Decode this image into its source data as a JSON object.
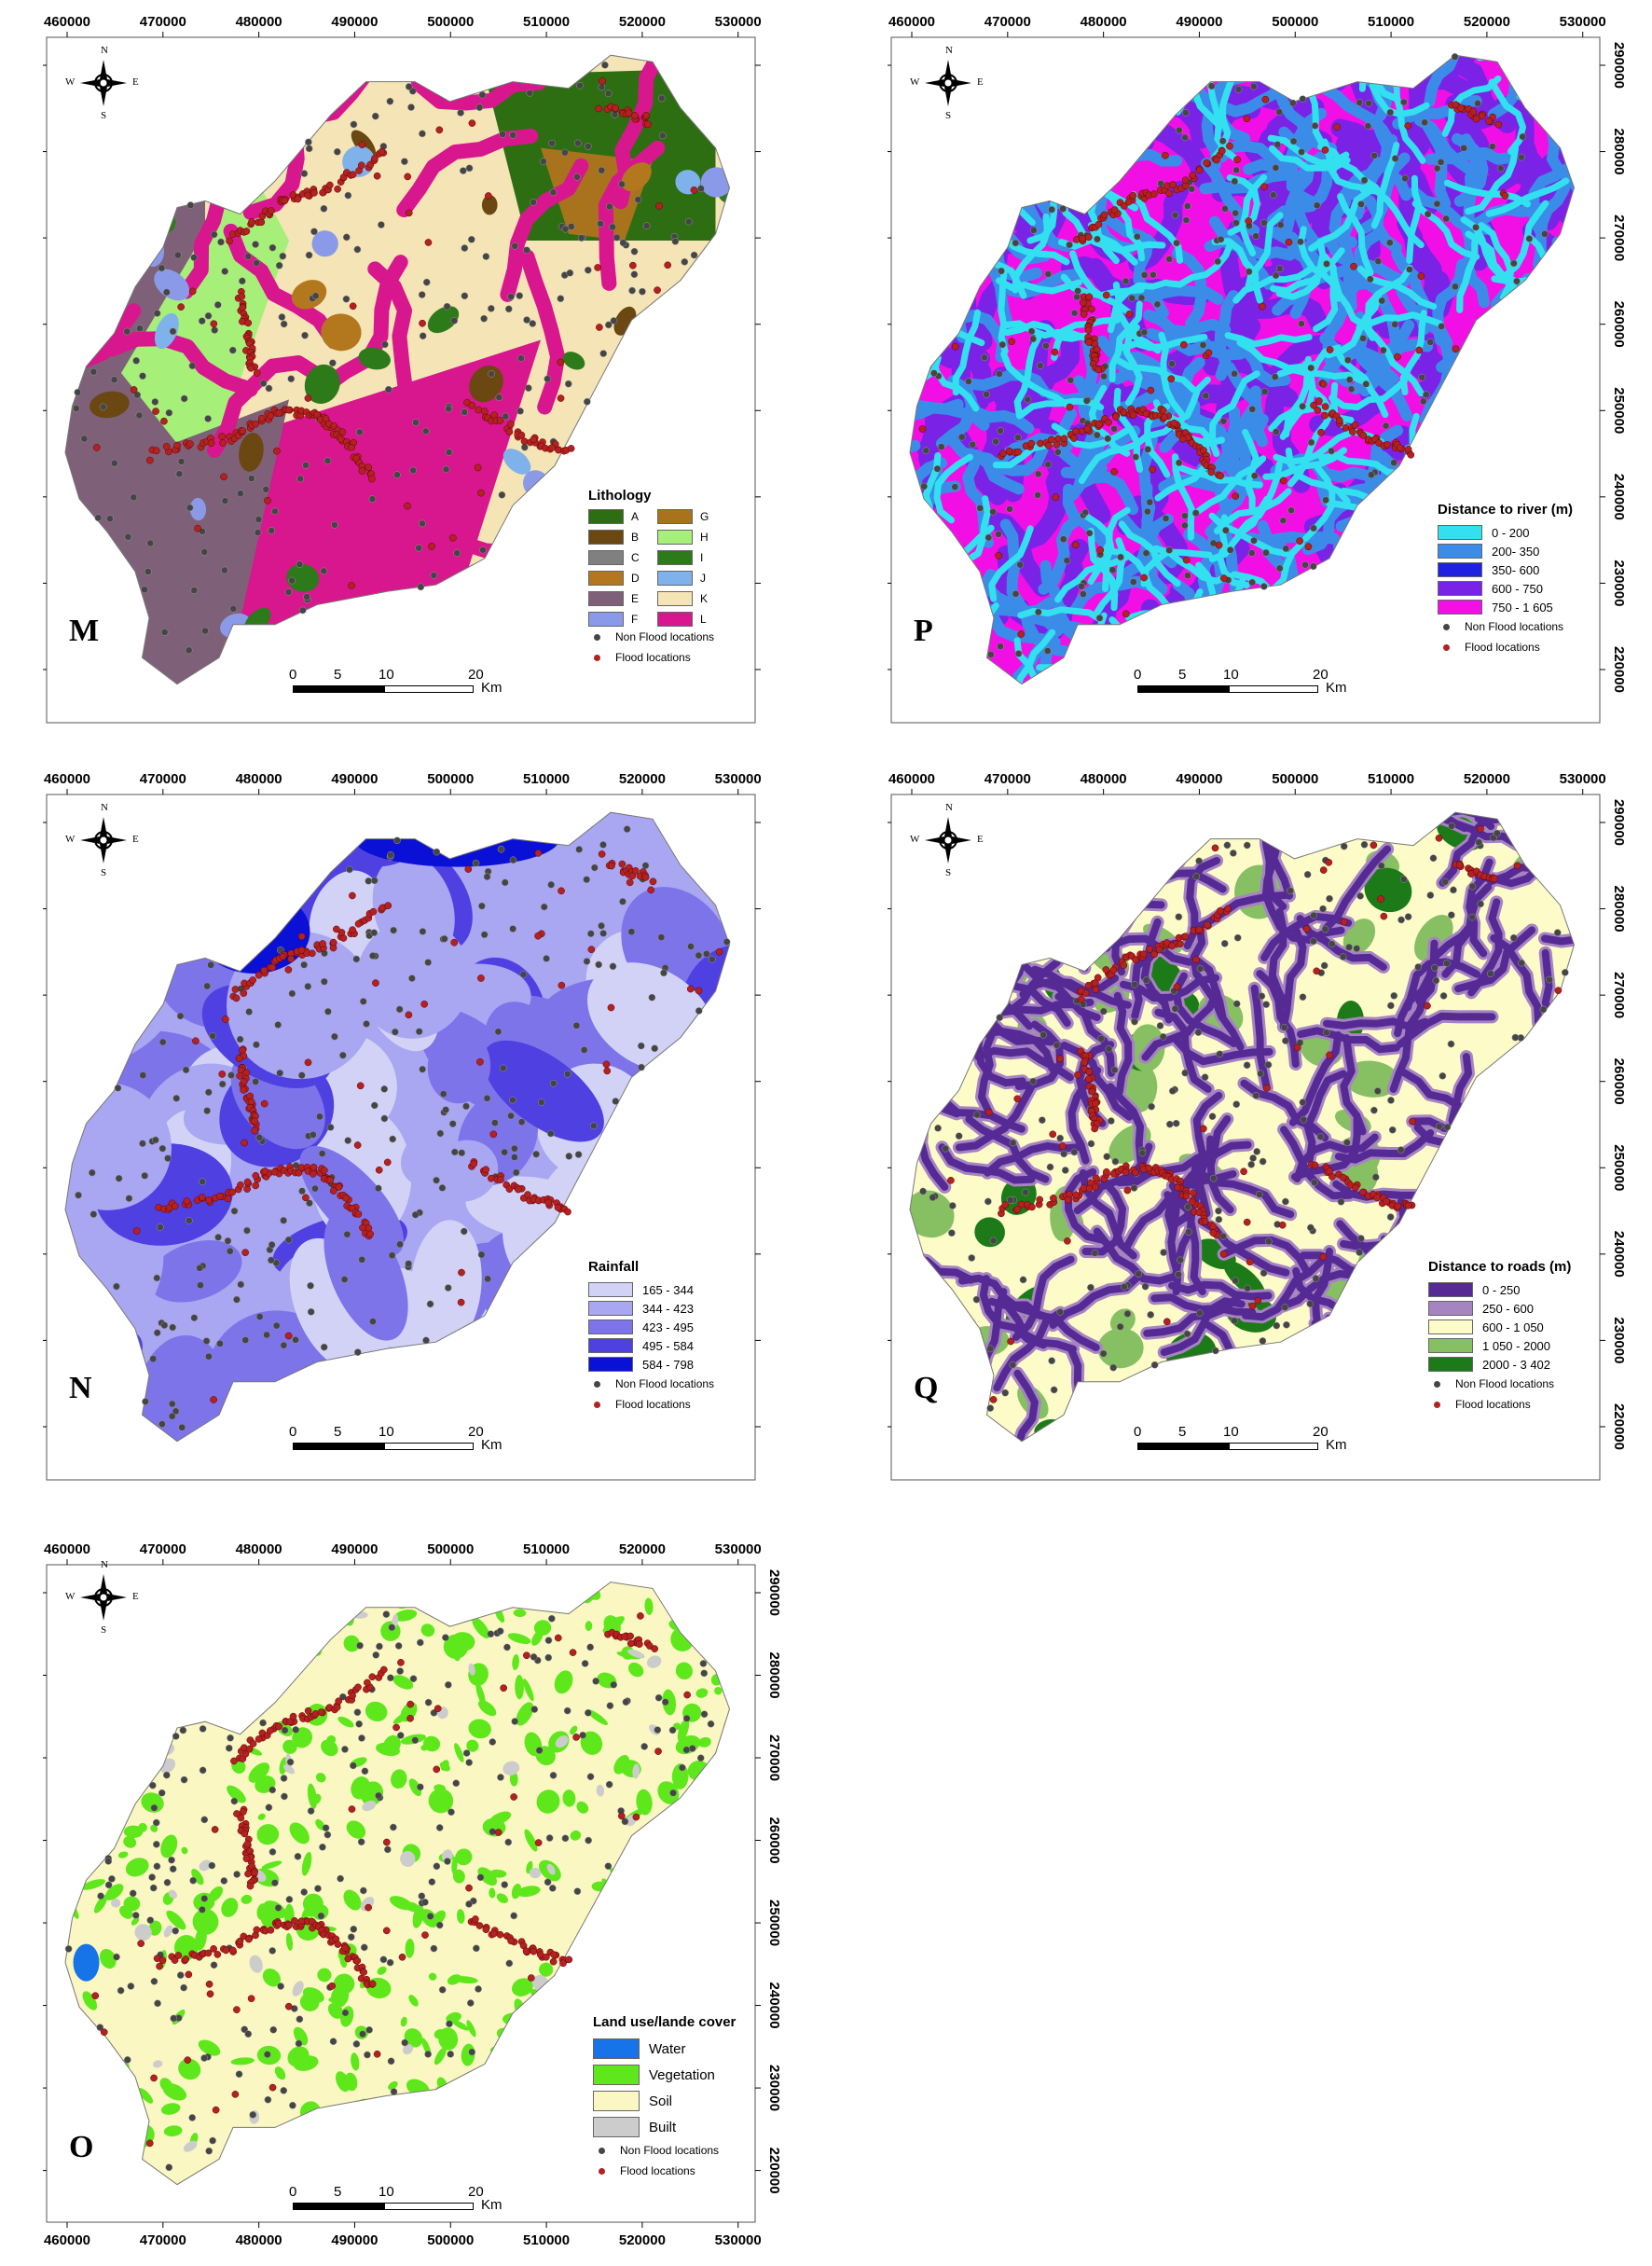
{
  "ticks": {
    "x": [
      "460000",
      "470000",
      "480000",
      "490000",
      "500000",
      "510000",
      "520000",
      "530000"
    ],
    "y": [
      "290000",
      "280000",
      "270000",
      "260000",
      "250000",
      "240000",
      "230000",
      "220000"
    ]
  },
  "compass": {
    "n": "N",
    "s": "S",
    "e": "E",
    "w": "W"
  },
  "scale": {
    "l0": "0",
    "l5": "5",
    "l10": "10",
    "l20": "20",
    "unit": "Km"
  },
  "points": {
    "non_flood": "Non Flood locations",
    "flood": "Flood locations",
    "non_flood_color": "#454545",
    "flood_color": "#b22222"
  },
  "panels": {
    "M": {
      "letter": "M",
      "legend_title": "Lithology",
      "classes": [
        {
          "label": "A",
          "color": "#2e6e12"
        },
        {
          "label": "G",
          "color": "#a8731c"
        },
        {
          "label": "B",
          "color": "#6b4712"
        },
        {
          "label": "H",
          "color": "#a6f07a"
        },
        {
          "label": "C",
          "color": "#808080"
        },
        {
          "label": "I",
          "color": "#2d7a1a"
        },
        {
          "label": "D",
          "color": "#b3781e"
        },
        {
          "label": "J",
          "color": "#7fb2eb"
        },
        {
          "label": "E",
          "color": "#7e6179"
        },
        {
          "label": "K",
          "color": "#f5e4b5"
        },
        {
          "label": "F",
          "color": "#8a9ae8"
        },
        {
          "label": "L",
          "color": "#d8168e"
        }
      ]
    },
    "P": {
      "letter": "P",
      "legend_title": "Distance to river (m)",
      "classes": [
        {
          "label": "0 - 200",
          "color": "#33e0f0"
        },
        {
          "label": "200- 350",
          "color": "#3b8ce8"
        },
        {
          "label": "350- 600",
          "color": "#1e22e0"
        },
        {
          "label": "600 - 750",
          "color": "#7a22e6"
        },
        {
          "label": "750 - 1 605",
          "color": "#f20fe6"
        }
      ]
    },
    "N": {
      "letter": "N",
      "legend_title": "Rainfall",
      "classes": [
        {
          "label": "165 - 344",
          "color": "#d2d2f7"
        },
        {
          "label": "344 - 423",
          "color": "#a9a6f2"
        },
        {
          "label": "423 - 495",
          "color": "#7d74ea"
        },
        {
          "label": "495 - 584",
          "color": "#4f40e2"
        },
        {
          "label": "584 - 798",
          "color": "#0a10d6"
        }
      ]
    },
    "Q": {
      "letter": "Q",
      "legend_title": "Distance to roads (m)",
      "classes": [
        {
          "label": "0 - 250",
          "color": "#552a94"
        },
        {
          "label": "250 - 600",
          "color": "#a683c1"
        },
        {
          "label": "600 - 1 050",
          "color": "#fdfbc8"
        },
        {
          "label": "1 050 - 2000",
          "color": "#86c063"
        },
        {
          "label": "2000 - 3 402",
          "color": "#1c7a19"
        }
      ]
    },
    "O": {
      "letter": "O",
      "legend_title": "Land use/lande cover",
      "classes": [
        {
          "label": "Water",
          "color": "#1673e8"
        },
        {
          "label": "Vegetation",
          "color": "#5ee81c"
        },
        {
          "label": "Soil",
          "color": "#fbf7c2"
        },
        {
          "label": "Built",
          "color": "#cccccc"
        }
      ]
    }
  }
}
